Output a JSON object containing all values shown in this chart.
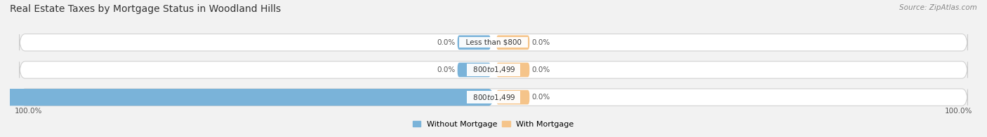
{
  "title": "Real Estate Taxes by Mortgage Status in Woodland Hills",
  "source": "Source: ZipAtlas.com",
  "categories": [
    "Less than $800",
    "$800 to $1,499",
    "$800 to $1,499"
  ],
  "without_mortgage": [
    0.0,
    0.0,
    100.0
  ],
  "with_mortgage": [
    0.0,
    0.0,
    0.0
  ],
  "color_without": "#7ab3d9",
  "color_with": "#f5c48a",
  "bg_bar": "#ebebeb",
  "bg_figure": "#f2f2f2",
  "title_fontsize": 10,
  "label_fontsize": 7.5,
  "legend_fontsize": 8,
  "bar_height": 0.62,
  "left_label": "100.0%",
  "right_label": "100.0%"
}
